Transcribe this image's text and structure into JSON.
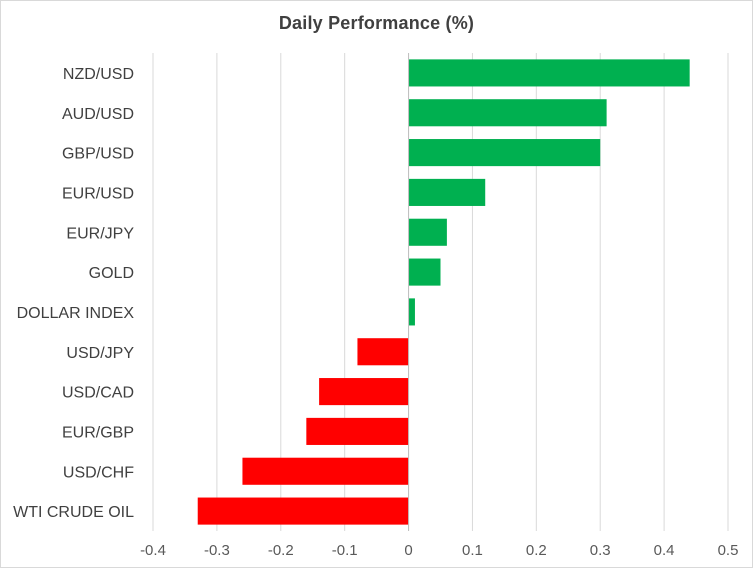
{
  "chart_data": {
    "type": "bar",
    "orientation": "horizontal",
    "title": "Daily Performance  (%)",
    "xlabel": "",
    "ylabel": "",
    "categories": [
      "NZD/USD",
      "AUD/USD",
      "GBP/USD",
      "EUR/USD",
      "EUR/JPY",
      "GOLD",
      "DOLLAR INDEX",
      "USD/JPY",
      "USD/CAD",
      "EUR/GBP",
      "USD/CHF",
      "WTI CRUDE OIL"
    ],
    "values": [
      0.44,
      0.31,
      0.3,
      0.12,
      0.06,
      0.05,
      0.01,
      -0.08,
      -0.14,
      -0.16,
      -0.26,
      -0.33
    ],
    "xlim": [
      -0.4,
      0.5
    ],
    "xticks": [
      -0.4,
      -0.3,
      -0.2,
      -0.1,
      0,
      0.1,
      0.2,
      0.3,
      0.4,
      0.5
    ],
    "xtick_labels": [
      "-0.4",
      "-0.3",
      "-0.2",
      "-0.1",
      "0",
      "0.1",
      "0.2",
      "0.3",
      "0.4",
      "0.5"
    ],
    "grid": "vertical",
    "legend": "none",
    "colors": {
      "positive": "#00b050",
      "negative": "#ff0000",
      "grid": "#d9d9d9",
      "axis": "#bfbfbf"
    }
  }
}
